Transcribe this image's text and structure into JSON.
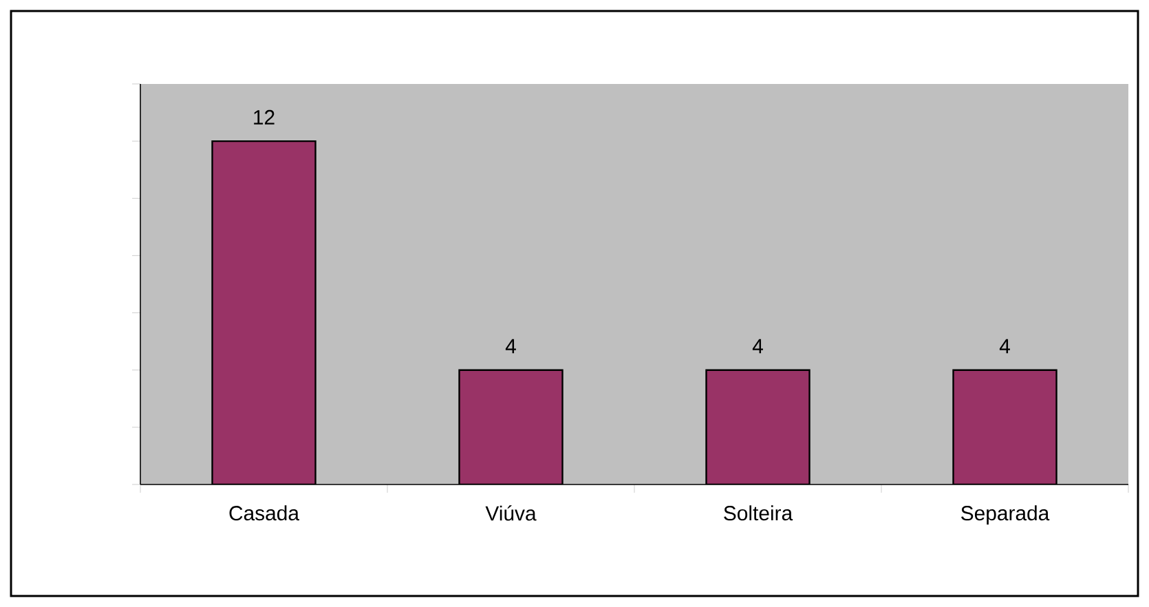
{
  "chart_data": {
    "type": "bar",
    "categories": [
      "Casada",
      "Viúva",
      "Solteira",
      "Separada"
    ],
    "values": [
      12,
      4,
      4,
      4
    ],
    "color": "#993366",
    "ylim": [
      0,
      14
    ],
    "yticks": [
      {
        "value": 0,
        "label": null
      },
      {
        "value": 2,
        "label": null
      },
      {
        "value": 4,
        "label": null
      },
      {
        "value": 6,
        "label": null
      },
      {
        "value": 8,
        "label": null
      },
      {
        "value": 10,
        "label": null
      },
      {
        "value": 12,
        "label": null
      },
      {
        "value": 14,
        "label": null
      }
    ],
    "data_labels": true,
    "grid": false
  }
}
